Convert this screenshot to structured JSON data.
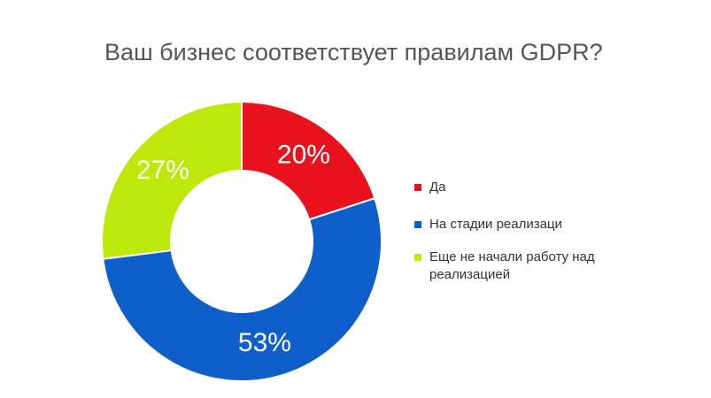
{
  "chart_data": {
    "type": "pie",
    "title": "Ваш бизнес соответствует правилам GDPR?",
    "donut": true,
    "legend_position": "right",
    "slices": [
      {
        "label": "Да",
        "value": 20,
        "display": "20%",
        "color": "#e8121f"
      },
      {
        "label": "На стадии реализаци",
        "value": 53,
        "display": "53%",
        "color": "#0f5fca"
      },
      {
        "label": "Еще не начали работу над реализацией",
        "value": 27,
        "display": "27%",
        "color": "#bde809"
      }
    ]
  }
}
